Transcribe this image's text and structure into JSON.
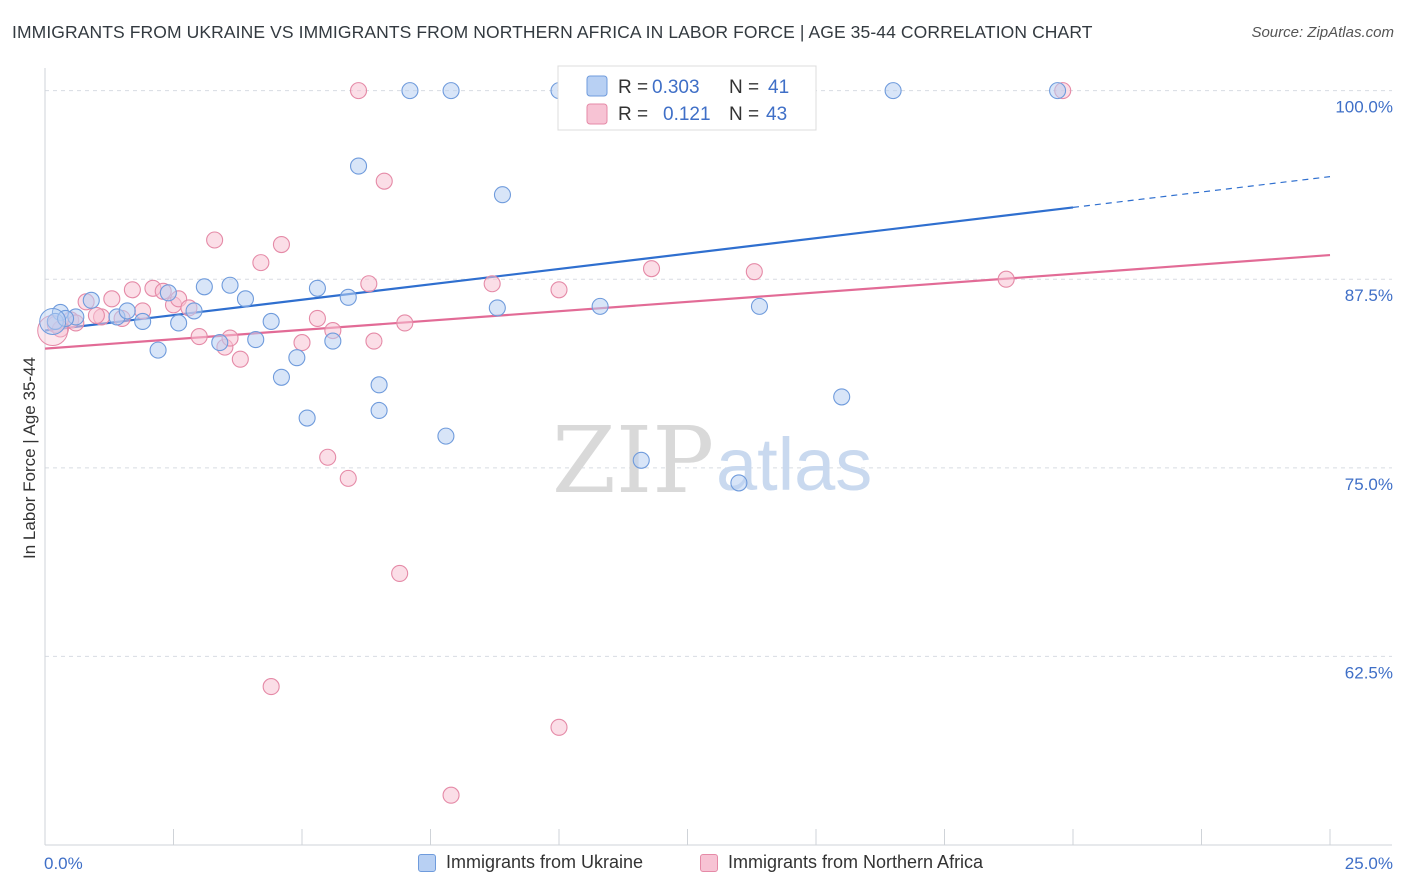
{
  "title": "IMMIGRANTS FROM UKRAINE VS IMMIGRANTS FROM NORTHERN AFRICA IN LABOR FORCE | AGE 35-44 CORRELATION CHART",
  "source": "Source: ZipAtlas.com",
  "watermark": {
    "zip": "ZIP",
    "atlas": "atlas"
  },
  "colors": {
    "ukraine_fill": "#b8d0f3",
    "ukraine_stroke": "#6f9bdc",
    "ukraine_line": "#2f6fcf",
    "nafrica_fill": "#f7c3d4",
    "nafrica_stroke": "#e58aa7",
    "nafrica_line": "#e26b96",
    "axis_label": "#3f6fc7",
    "grid": "#d8dce2"
  },
  "legend": {
    "r_label": "R =",
    "n_label": "N =",
    "ukraine": {
      "r": "0.303",
      "n": "41"
    },
    "nafrica": {
      "r": "0.121",
      "n": "43"
    }
  },
  "bottom_legend": {
    "ukraine": "Immigrants from Ukraine",
    "nafrica": "Immigrants from Northern Africa"
  },
  "chart_data": {
    "type": "scatter",
    "title": "IMMIGRANTS FROM UKRAINE VS IMMIGRANTS FROM NORTHERN AFRICA IN LABOR FORCE | AGE 35-44 CORRELATION CHART",
    "xlabel": "",
    "ylabel": "In Labor Force | Age 35-44",
    "xlim": [
      0,
      25
    ],
    "ylim": [
      50,
      101.5
    ],
    "x_tick_labels": [
      "0.0%",
      "25.0%"
    ],
    "y_ticks": [
      100,
      87.5,
      75,
      62.5
    ],
    "y_tick_labels": [
      "100.0%",
      "87.5%",
      "75.0%",
      "62.5%"
    ],
    "grid": "horizontal dashed",
    "legend_position": "top-center",
    "series": [
      {
        "name": "Immigrants from Ukraine",
        "r": 0.303,
        "n": 41,
        "trend": {
          "x0": 0,
          "y0": 84.1,
          "x1": 25,
          "y1": 94.3,
          "solid_until_x": 20
        },
        "points": [
          {
            "x": 0.3,
            "y": 85.3
          },
          {
            "x": 0.6,
            "y": 85.0
          },
          {
            "x": 0.9,
            "y": 86.1
          },
          {
            "x": 1.4,
            "y": 85.0
          },
          {
            "x": 1.6,
            "y": 85.4
          },
          {
            "x": 1.9,
            "y": 84.7
          },
          {
            "x": 2.2,
            "y": 82.8
          },
          {
            "x": 2.4,
            "y": 86.6
          },
          {
            "x": 2.6,
            "y": 84.6
          },
          {
            "x": 2.9,
            "y": 85.4
          },
          {
            "x": 3.1,
            "y": 87.0
          },
          {
            "x": 3.4,
            "y": 83.3
          },
          {
            "x": 3.6,
            "y": 87.1
          },
          {
            "x": 3.9,
            "y": 86.2
          },
          {
            "x": 4.1,
            "y": 83.5
          },
          {
            "x": 4.4,
            "y": 84.7
          },
          {
            "x": 4.6,
            "y": 81.0
          },
          {
            "x": 4.9,
            "y": 82.3
          },
          {
            "x": 5.1,
            "y": 78.3
          },
          {
            "x": 5.3,
            "y": 86.9
          },
          {
            "x": 5.6,
            "y": 83.4
          },
          {
            "x": 5.9,
            "y": 86.3
          },
          {
            "x": 6.1,
            "y": 95.0
          },
          {
            "x": 6.5,
            "y": 80.5
          },
          {
            "x": 6.5,
            "y": 78.8
          },
          {
            "x": 7.1,
            "y": 100.0
          },
          {
            "x": 7.9,
            "y": 100.0
          },
          {
            "x": 7.8,
            "y": 77.1
          },
          {
            "x": 8.8,
            "y": 85.6
          },
          {
            "x": 8.9,
            "y": 93.1
          },
          {
            "x": 10.0,
            "y": 100.0
          },
          {
            "x": 10.8,
            "y": 85.7
          },
          {
            "x": 11.6,
            "y": 75.5
          },
          {
            "x": 13.5,
            "y": 74.0
          },
          {
            "x": 13.9,
            "y": 85.7
          },
          {
            "x": 14.0,
            "y": 100.0
          },
          {
            "x": 15.5,
            "y": 79.7
          },
          {
            "x": 16.5,
            "y": 100.0
          },
          {
            "x": 19.7,
            "y": 100.0
          },
          {
            "x": 0.2,
            "y": 84.7
          },
          {
            "x": 0.4,
            "y": 84.9
          }
        ]
      },
      {
        "name": "Immigrants from Northern Africa",
        "r": 0.121,
        "n": 43,
        "trend": {
          "x0": 0,
          "y0": 82.9,
          "x1": 25,
          "y1": 89.1,
          "solid_until_x": 25
        },
        "points": [
          {
            "x": 0.2,
            "y": 84.5
          },
          {
            "x": 0.5,
            "y": 84.8
          },
          {
            "x": 0.8,
            "y": 86.0
          },
          {
            "x": 1.1,
            "y": 85.0
          },
          {
            "x": 1.3,
            "y": 86.2
          },
          {
            "x": 1.5,
            "y": 84.9
          },
          {
            "x": 1.7,
            "y": 86.8
          },
          {
            "x": 1.9,
            "y": 85.4
          },
          {
            "x": 2.1,
            "y": 86.9
          },
          {
            "x": 2.3,
            "y": 86.7
          },
          {
            "x": 2.5,
            "y": 85.8
          },
          {
            "x": 2.6,
            "y": 86.2
          },
          {
            "x": 2.8,
            "y": 85.6
          },
          {
            "x": 3.0,
            "y": 83.7
          },
          {
            "x": 3.3,
            "y": 90.1
          },
          {
            "x": 3.5,
            "y": 83.0
          },
          {
            "x": 3.6,
            "y": 83.6
          },
          {
            "x": 3.8,
            "y": 82.2
          },
          {
            "x": 4.2,
            "y": 88.6
          },
          {
            "x": 4.4,
            "y": 60.5
          },
          {
            "x": 4.6,
            "y": 89.8
          },
          {
            "x": 5.0,
            "y": 83.3
          },
          {
            "x": 5.3,
            "y": 84.9
          },
          {
            "x": 5.5,
            "y": 75.7
          },
          {
            "x": 5.6,
            "y": 84.1
          },
          {
            "x": 5.9,
            "y": 74.3
          },
          {
            "x": 6.1,
            "y": 100.0
          },
          {
            "x": 6.3,
            "y": 87.2
          },
          {
            "x": 6.4,
            "y": 83.4
          },
          {
            "x": 6.6,
            "y": 94.0
          },
          {
            "x": 6.9,
            "y": 68.0
          },
          {
            "x": 7.0,
            "y": 84.6
          },
          {
            "x": 7.9,
            "y": 53.3
          },
          {
            "x": 8.7,
            "y": 87.2
          },
          {
            "x": 10.0,
            "y": 86.8
          },
          {
            "x": 10.0,
            "y": 57.8
          },
          {
            "x": 11.8,
            "y": 88.2
          },
          {
            "x": 13.8,
            "y": 88.0
          },
          {
            "x": 18.7,
            "y": 87.5
          },
          {
            "x": 19.8,
            "y": 100.0
          },
          {
            "x": 0.3,
            "y": 84.2
          },
          {
            "x": 0.6,
            "y": 84.6
          },
          {
            "x": 1.0,
            "y": 85.1
          }
        ]
      }
    ]
  }
}
